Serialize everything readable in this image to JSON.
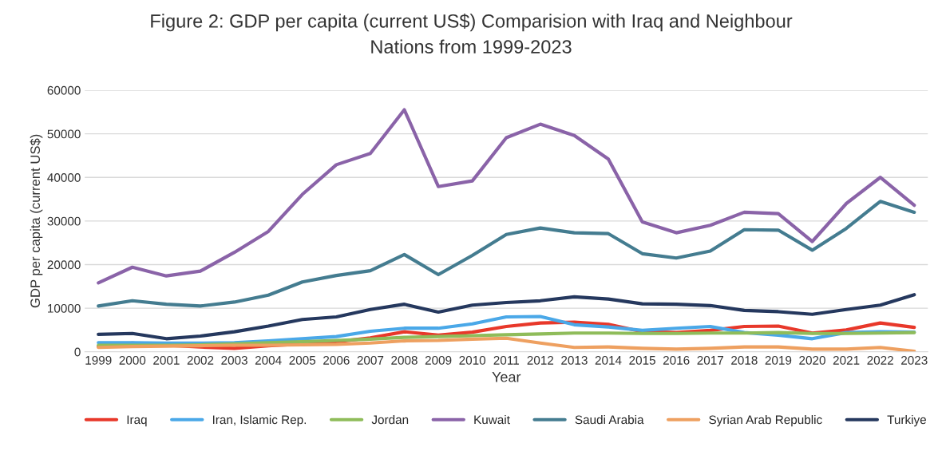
{
  "chart_data": {
    "type": "line",
    "title": "Figure 2: GDP per capita (current US$) Comparision with Iraq and Neighbour\nNations from 1999-2023",
    "xlabel": "Year",
    "ylabel": "GDP per capita (current US$)",
    "categories": [
      "1999",
      "2000",
      "2001",
      "2002",
      "2003",
      "2004",
      "2005",
      "2006",
      "2007",
      "2008",
      "2009",
      "2010",
      "2011",
      "2012",
      "2013",
      "2014",
      "2015",
      "2016",
      "2017",
      "2018",
      "2019",
      "2020",
      "2021",
      "2022",
      "2023"
    ],
    "series": [
      {
        "name": "Iraq",
        "color": "#e8382a",
        "values": [
          1200,
          2000,
          1500,
          1100,
          800,
          1400,
          1800,
          2300,
          3200,
          4600,
          3800,
          4500,
          5800,
          6600,
          6800,
          6300,
          4600,
          4400,
          4900,
          5800,
          5900,
          4300,
          5000,
          6600,
          5600
        ]
      },
      {
        "name": "Iran, Islamic Rep.",
        "color": "#4aa8e8",
        "values": [
          2100,
          2100,
          2000,
          2000,
          2100,
          2500,
          3000,
          3500,
          4700,
          5400,
          5400,
          6400,
          8000,
          8100,
          6200,
          5700,
          4900,
          5400,
          5800,
          4400,
          3800,
          3000,
          4400,
          4600,
          4500
        ]
      },
      {
        "name": "Jordan",
        "color": "#8fbc5a",
        "values": [
          1500,
          1500,
          1500,
          1600,
          1800,
          2100,
          2300,
          2600,
          2900,
          3300,
          3500,
          3700,
          3900,
          4100,
          4300,
          4300,
          4200,
          4200,
          4300,
          4300,
          4400,
          4200,
          4200,
          4300,
          4400
        ]
      },
      {
        "name": "Kuwait",
        "color": "#8a63a8",
        "values": [
          15800,
          19400,
          17400,
          18500,
          22800,
          27600,
          36100,
          42900,
          45500,
          55500,
          37900,
          39200,
          49100,
          52200,
          49600,
          44200,
          29800,
          27300,
          29000,
          32000,
          31700,
          25300,
          34000,
          40000,
          33600
        ]
      },
      {
        "name": "Saudi Arabia",
        "color": "#447c90",
        "values": [
          10500,
          11700,
          10900,
          10500,
          11400,
          13000,
          16000,
          17500,
          18600,
          22300,
          17700,
          22100,
          26900,
          28400,
          27300,
          27100,
          22500,
          21500,
          23100,
          28000,
          27900,
          23300,
          28300,
          34500,
          32000
        ]
      },
      {
        "name": "Syrian Arab Republic",
        "color": "#eea060",
        "values": [
          1000,
          1200,
          1300,
          1400,
          1500,
          1500,
          1600,
          1700,
          2000,
          2500,
          2600,
          2900,
          3100,
          2000,
          1000,
          1100,
          800,
          600,
          800,
          1100,
          1100,
          600,
          600,
          1000,
          100
        ]
      },
      {
        "name": "Turkiye",
        "color": "#25385e",
        "values": [
          4000,
          4200,
          3000,
          3600,
          4600,
          5900,
          7400,
          8000,
          9700,
          10900,
          9100,
          10700,
          11300,
          11700,
          12600,
          12100,
          11000,
          10900,
          10600,
          9500,
          9200,
          8600,
          9700,
          10700,
          13100
        ]
      }
    ],
    "ylim": [
      0,
      60000
    ],
    "yticks": [
      0,
      10000,
      20000,
      30000,
      40000,
      50000,
      60000
    ],
    "grid": "y",
    "legend": "bottom",
    "marker": "none",
    "line_style": "solid"
  }
}
